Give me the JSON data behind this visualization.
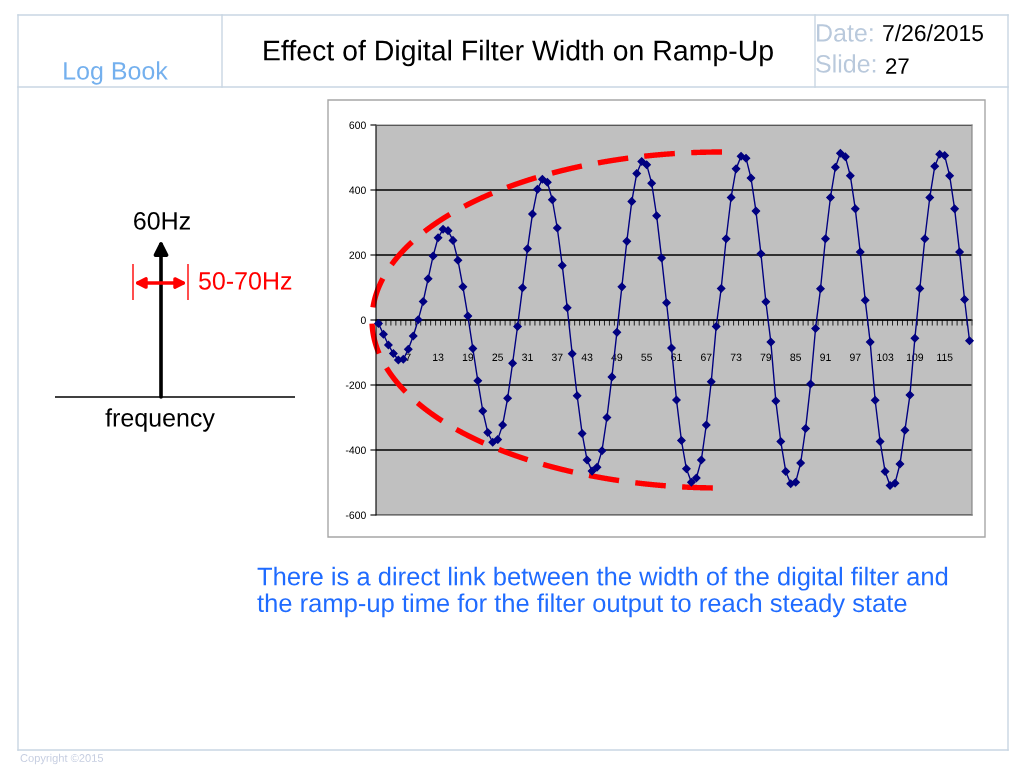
{
  "chart_data": {
    "type": "line",
    "title": "Effect of Digital Filter Width on Ramp-Up",
    "categories": [
      null,
      null,
      null,
      null,
      null,
      null,
      "7",
      null,
      null,
      null,
      null,
      null,
      "13",
      null,
      null,
      null,
      null,
      null,
      "19",
      null,
      null,
      null,
      null,
      null,
      "25",
      null,
      null,
      null,
      null,
      null,
      "31",
      null,
      null,
      null,
      null,
      null,
      "37",
      null,
      null,
      null,
      null,
      null,
      "43",
      null,
      null,
      null,
      null,
      null,
      "49",
      null,
      null,
      null,
      null,
      null,
      "55",
      null,
      null,
      null,
      null,
      null,
      "61",
      null,
      null,
      null,
      null,
      null,
      "67",
      null,
      null,
      null,
      null,
      null,
      "73",
      null,
      null,
      null,
      null,
      null,
      "79",
      null,
      null,
      null,
      null,
      null,
      "85",
      null,
      null,
      null,
      null,
      null,
      "91",
      null,
      null,
      null,
      null,
      null,
      "97",
      null,
      null,
      null,
      null,
      null,
      "103",
      null,
      null,
      null,
      null,
      null,
      "109",
      null,
      null,
      null,
      null,
      null,
      "115",
      null,
      null,
      null,
      null,
      null
    ],
    "values": [
      -11,
      -44,
      -77,
      -103,
      -123,
      -121,
      -90,
      -49,
      1,
      57,
      127,
      197,
      253,
      279,
      275,
      245,
      184,
      102,
      12,
      -88,
      -187,
      -280,
      -346,
      -376,
      -368,
      -323,
      -241,
      -133,
      -20,
      99,
      219,
      326,
      402,
      433,
      424,
      370,
      283,
      168,
      38,
      -104,
      -233,
      -349,
      -431,
      -465,
      -453,
      -402,
      -300,
      -175,
      -38,
      102,
      242,
      365,
      451,
      488,
      478,
      421,
      321,
      191,
      53,
      -86,
      -246,
      -371,
      -458,
      -499,
      -486,
      -431,
      -323,
      -190,
      -20,
      97,
      250,
      377,
      465,
      504,
      498,
      437,
      335,
      204,
      56,
      -68,
      -249,
      -374,
      -466,
      -504,
      -499,
      -440,
      -334,
      -197,
      -26,
      96,
      250,
      377,
      470,
      513,
      502,
      444,
      342,
      209,
      61,
      -68,
      -247,
      -374,
      -466,
      -509,
      -502,
      -443,
      -339,
      -231,
      -56,
      97,
      250,
      377,
      473,
      510,
      506,
      444,
      342,
      209,
      63,
      -64
    ],
    "color": "#000080",
    "marker": "diamond",
    "line_style": "solid",
    "ylim": [
      -600,
      600
    ],
    "yticks": [
      -600,
      -400,
      -200,
      0,
      200,
      400,
      600
    ],
    "grid": "y",
    "annotations": [
      "Log Book",
      "Date:",
      "7/26/2015",
      "Slide:",
      "27",
      "60Hz",
      "50-70Hz",
      "frequency",
      "There is a direct link between the width of the digital filter and the ramp-up time for the filter output to reach steady state",
      "Copyright ©2015"
    ]
  }
}
